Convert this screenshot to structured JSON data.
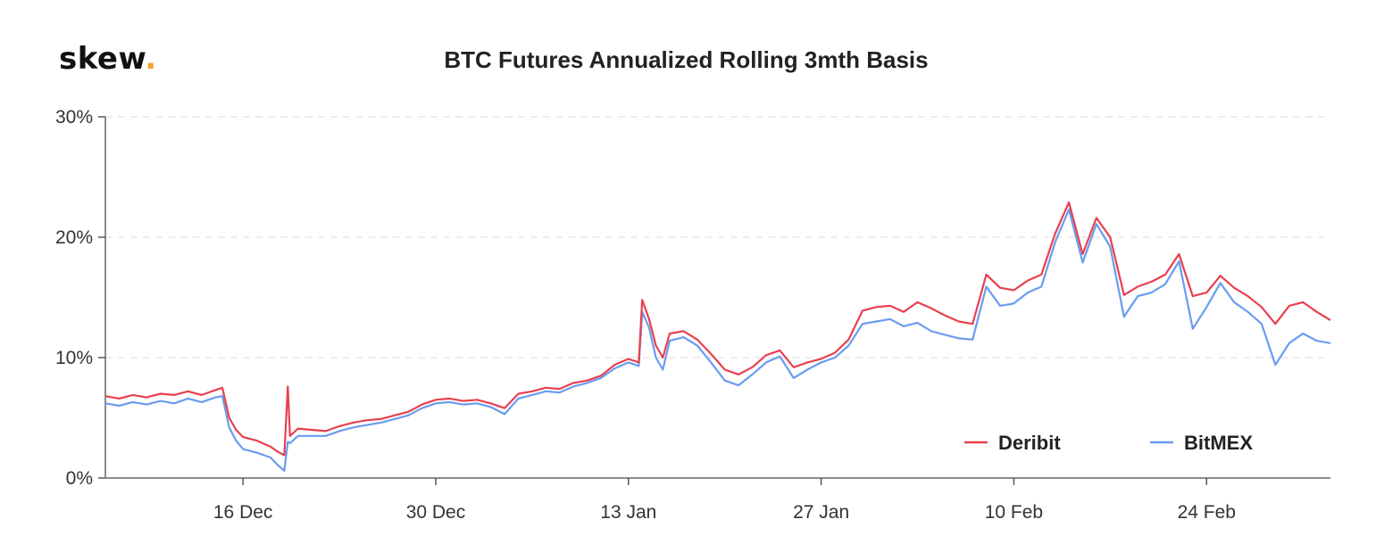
{
  "logo": {
    "text": "skew",
    "dot": "."
  },
  "chart_data": {
    "type": "line",
    "title": "BTC Futures Annualized Rolling 3mth Basis",
    "xlabel": "",
    "ylabel": "",
    "x_range": [
      "2019-12-06",
      "2020-03-04"
    ],
    "ylim": [
      0,
      30
    ],
    "y_ticks": [
      {
        "value": 0,
        "label": "0%"
      },
      {
        "value": 10,
        "label": "10%"
      },
      {
        "value": 20,
        "label": "20%"
      },
      {
        "value": 30,
        "label": "30%"
      }
    ],
    "x_ticks": [
      {
        "date": "2019-12-16",
        "label": "16 Dec"
      },
      {
        "date": "2019-12-30",
        "label": "30 Dec"
      },
      {
        "date": "2020-01-13",
        "label": "13 Jan"
      },
      {
        "date": "2020-01-27",
        "label": "27 Jan"
      },
      {
        "date": "2020-02-10",
        "label": "10 Feb"
      },
      {
        "date": "2020-02-24",
        "label": "24 Feb"
      }
    ],
    "grid": "horizontal-dashed",
    "legend_position": "bottom-right",
    "series": [
      {
        "name": "Deribit",
        "color": "#e8404f",
        "points": [
          [
            "2019-12-06",
            6.8
          ],
          [
            "2019-12-07",
            6.6
          ],
          [
            "2019-12-08",
            6.9
          ],
          [
            "2019-12-09",
            6.7
          ],
          [
            "2019-12-10",
            7.0
          ],
          [
            "2019-12-11",
            6.9
          ],
          [
            "2019-12-12",
            7.2
          ],
          [
            "2019-12-13",
            6.9
          ],
          [
            "2019-12-14",
            7.3
          ],
          [
            "2019-12-14T12",
            7.5
          ],
          [
            "2019-12-15",
            5.0
          ],
          [
            "2019-12-15T12",
            4.0
          ],
          [
            "2019-12-16",
            3.4
          ],
          [
            "2019-12-17",
            3.1
          ],
          [
            "2019-12-18",
            2.6
          ],
          [
            "2019-12-18T12",
            2.2
          ],
          [
            "2019-12-19",
            1.9
          ],
          [
            "2019-12-19T06",
            7.6
          ],
          [
            "2019-12-19T10",
            3.5
          ],
          [
            "2019-12-20",
            4.1
          ],
          [
            "2019-12-21",
            4.0
          ],
          [
            "2019-12-22",
            3.9
          ],
          [
            "2019-12-23",
            4.3
          ],
          [
            "2019-12-24",
            4.6
          ],
          [
            "2019-12-25",
            4.8
          ],
          [
            "2019-12-26",
            4.9
          ],
          [
            "2019-12-27",
            5.2
          ],
          [
            "2019-12-28",
            5.5
          ],
          [
            "2019-12-29",
            6.1
          ],
          [
            "2019-12-30",
            6.5
          ],
          [
            "2019-12-31",
            6.6
          ],
          [
            "2020-01-01",
            6.4
          ],
          [
            "2020-01-02",
            6.5
          ],
          [
            "2020-01-03",
            6.2
          ],
          [
            "2020-01-04",
            5.8
          ],
          [
            "2020-01-05",
            7.0
          ],
          [
            "2020-01-06",
            7.2
          ],
          [
            "2020-01-07",
            7.5
          ],
          [
            "2020-01-08",
            7.4
          ],
          [
            "2020-01-09",
            7.9
          ],
          [
            "2020-01-10",
            8.1
          ],
          [
            "2020-01-11",
            8.5
          ],
          [
            "2020-01-12",
            9.4
          ],
          [
            "2020-01-13",
            9.9
          ],
          [
            "2020-01-13T18",
            9.6
          ],
          [
            "2020-01-14",
            14.8
          ],
          [
            "2020-01-14T12",
            13.2
          ],
          [
            "2020-01-15",
            11.0
          ],
          [
            "2020-01-15T12",
            10.0
          ],
          [
            "2020-01-16",
            12.0
          ],
          [
            "2020-01-17",
            12.2
          ],
          [
            "2020-01-18",
            11.5
          ],
          [
            "2020-01-19",
            10.3
          ],
          [
            "2020-01-20",
            9.0
          ],
          [
            "2020-01-21",
            8.6
          ],
          [
            "2020-01-22",
            9.2
          ],
          [
            "2020-01-23",
            10.2
          ],
          [
            "2020-01-24",
            10.6
          ],
          [
            "2020-01-25",
            9.2
          ],
          [
            "2020-01-26",
            9.6
          ],
          [
            "2020-01-27",
            9.9
          ],
          [
            "2020-01-28",
            10.4
          ],
          [
            "2020-01-29",
            11.5
          ],
          [
            "2020-01-30",
            13.9
          ],
          [
            "2020-01-31",
            14.2
          ],
          [
            "2020-02-01",
            14.3
          ],
          [
            "2020-02-02",
            13.8
          ],
          [
            "2020-02-03",
            14.6
          ],
          [
            "2020-02-04",
            14.1
          ],
          [
            "2020-02-05",
            13.5
          ],
          [
            "2020-02-06",
            13.0
          ],
          [
            "2020-02-07",
            12.8
          ],
          [
            "2020-02-08",
            16.9
          ],
          [
            "2020-02-09",
            15.8
          ],
          [
            "2020-02-10",
            15.6
          ],
          [
            "2020-02-11",
            16.4
          ],
          [
            "2020-02-12",
            16.9
          ],
          [
            "2020-02-13",
            20.3
          ],
          [
            "2020-02-14",
            22.9
          ],
          [
            "2020-02-15",
            18.6
          ],
          [
            "2020-02-16",
            21.6
          ],
          [
            "2020-02-17",
            20.0
          ],
          [
            "2020-02-18",
            15.2
          ],
          [
            "2020-02-19",
            15.9
          ],
          [
            "2020-02-20",
            16.3
          ],
          [
            "2020-02-21",
            16.9
          ],
          [
            "2020-02-22",
            18.6
          ],
          [
            "2020-02-23",
            15.1
          ],
          [
            "2020-02-24",
            15.4
          ],
          [
            "2020-02-25",
            16.8
          ],
          [
            "2020-02-26",
            15.8
          ],
          [
            "2020-02-27",
            15.1
          ],
          [
            "2020-02-28",
            14.2
          ],
          [
            "2020-02-29",
            12.8
          ],
          [
            "2020-03-01",
            14.3
          ],
          [
            "2020-03-02",
            14.6
          ],
          [
            "2020-03-03",
            13.8
          ],
          [
            "2020-03-04",
            13.1
          ]
        ]
      },
      {
        "name": "BitMEX",
        "color": "#6a9cf0",
        "points": [
          [
            "2019-12-06",
            6.2
          ],
          [
            "2019-12-07",
            6.0
          ],
          [
            "2019-12-08",
            6.3
          ],
          [
            "2019-12-09",
            6.1
          ],
          [
            "2019-12-10",
            6.4
          ],
          [
            "2019-12-11",
            6.2
          ],
          [
            "2019-12-12",
            6.6
          ],
          [
            "2019-12-13",
            6.3
          ],
          [
            "2019-12-14",
            6.7
          ],
          [
            "2019-12-14T12",
            6.8
          ],
          [
            "2019-12-15",
            4.2
          ],
          [
            "2019-12-15T12",
            3.1
          ],
          [
            "2019-12-16",
            2.4
          ],
          [
            "2019-12-17",
            2.1
          ],
          [
            "2019-12-18",
            1.7
          ],
          [
            "2019-12-18T12",
            1.1
          ],
          [
            "2019-12-19",
            0.6
          ],
          [
            "2019-12-19T06",
            3.0
          ],
          [
            "2019-12-19T10",
            2.9
          ],
          [
            "2019-12-20",
            3.5
          ],
          [
            "2019-12-21",
            3.5
          ],
          [
            "2019-12-22",
            3.5
          ],
          [
            "2019-12-23",
            3.9
          ],
          [
            "2019-12-24",
            4.2
          ],
          [
            "2019-12-25",
            4.4
          ],
          [
            "2019-12-26",
            4.6
          ],
          [
            "2019-12-27",
            4.9
          ],
          [
            "2019-12-28",
            5.2
          ],
          [
            "2019-12-29",
            5.8
          ],
          [
            "2019-12-30",
            6.2
          ],
          [
            "2019-12-31",
            6.3
          ],
          [
            "2020-01-01",
            6.1
          ],
          [
            "2020-01-02",
            6.2
          ],
          [
            "2020-01-03",
            5.9
          ],
          [
            "2020-01-04",
            5.3
          ],
          [
            "2020-01-05",
            6.6
          ],
          [
            "2020-01-06",
            6.9
          ],
          [
            "2020-01-07",
            7.2
          ],
          [
            "2020-01-08",
            7.1
          ],
          [
            "2020-01-09",
            7.6
          ],
          [
            "2020-01-10",
            7.9
          ],
          [
            "2020-01-11",
            8.3
          ],
          [
            "2020-01-12",
            9.1
          ],
          [
            "2020-01-13",
            9.6
          ],
          [
            "2020-01-13T18",
            9.3
          ],
          [
            "2020-01-14",
            13.8
          ],
          [
            "2020-01-14T12",
            12.5
          ],
          [
            "2020-01-15",
            10.0
          ],
          [
            "2020-01-15T12",
            9.0
          ],
          [
            "2020-01-16",
            11.4
          ],
          [
            "2020-01-17",
            11.7
          ],
          [
            "2020-01-18",
            11.0
          ],
          [
            "2020-01-19",
            9.6
          ],
          [
            "2020-01-20",
            8.1
          ],
          [
            "2020-01-21",
            7.7
          ],
          [
            "2020-01-22",
            8.6
          ],
          [
            "2020-01-23",
            9.6
          ],
          [
            "2020-01-24",
            10.1
          ],
          [
            "2020-01-25",
            8.3
          ],
          [
            "2020-01-26",
            9.0
          ],
          [
            "2020-01-27",
            9.6
          ],
          [
            "2020-01-28",
            10.0
          ],
          [
            "2020-01-29",
            11.0
          ],
          [
            "2020-01-30",
            12.8
          ],
          [
            "2020-01-31",
            13.0
          ],
          [
            "2020-02-01",
            13.2
          ],
          [
            "2020-02-02",
            12.6
          ],
          [
            "2020-02-03",
            12.9
          ],
          [
            "2020-02-04",
            12.2
          ],
          [
            "2020-02-05",
            11.9
          ],
          [
            "2020-02-06",
            11.6
          ],
          [
            "2020-02-07",
            11.5
          ],
          [
            "2020-02-08",
            15.9
          ],
          [
            "2020-02-09",
            14.3
          ],
          [
            "2020-02-10",
            14.5
          ],
          [
            "2020-02-11",
            15.4
          ],
          [
            "2020-02-12",
            15.9
          ],
          [
            "2020-02-13",
            19.6
          ],
          [
            "2020-02-14",
            22.3
          ],
          [
            "2020-02-15",
            17.9
          ],
          [
            "2020-02-16",
            21.1
          ],
          [
            "2020-02-17",
            19.2
          ],
          [
            "2020-02-18",
            13.4
          ],
          [
            "2020-02-19",
            15.1
          ],
          [
            "2020-02-20",
            15.4
          ],
          [
            "2020-02-21",
            16.1
          ],
          [
            "2020-02-22",
            18.0
          ],
          [
            "2020-02-23",
            12.4
          ],
          [
            "2020-02-24",
            14.2
          ],
          [
            "2020-02-25",
            16.2
          ],
          [
            "2020-02-26",
            14.6
          ],
          [
            "2020-02-27",
            13.8
          ],
          [
            "2020-02-28",
            12.8
          ],
          [
            "2020-02-29",
            9.4
          ],
          [
            "2020-03-01",
            11.2
          ],
          [
            "2020-03-02",
            12.0
          ],
          [
            "2020-03-03",
            11.4
          ],
          [
            "2020-03-04",
            11.2
          ]
        ]
      }
    ]
  }
}
